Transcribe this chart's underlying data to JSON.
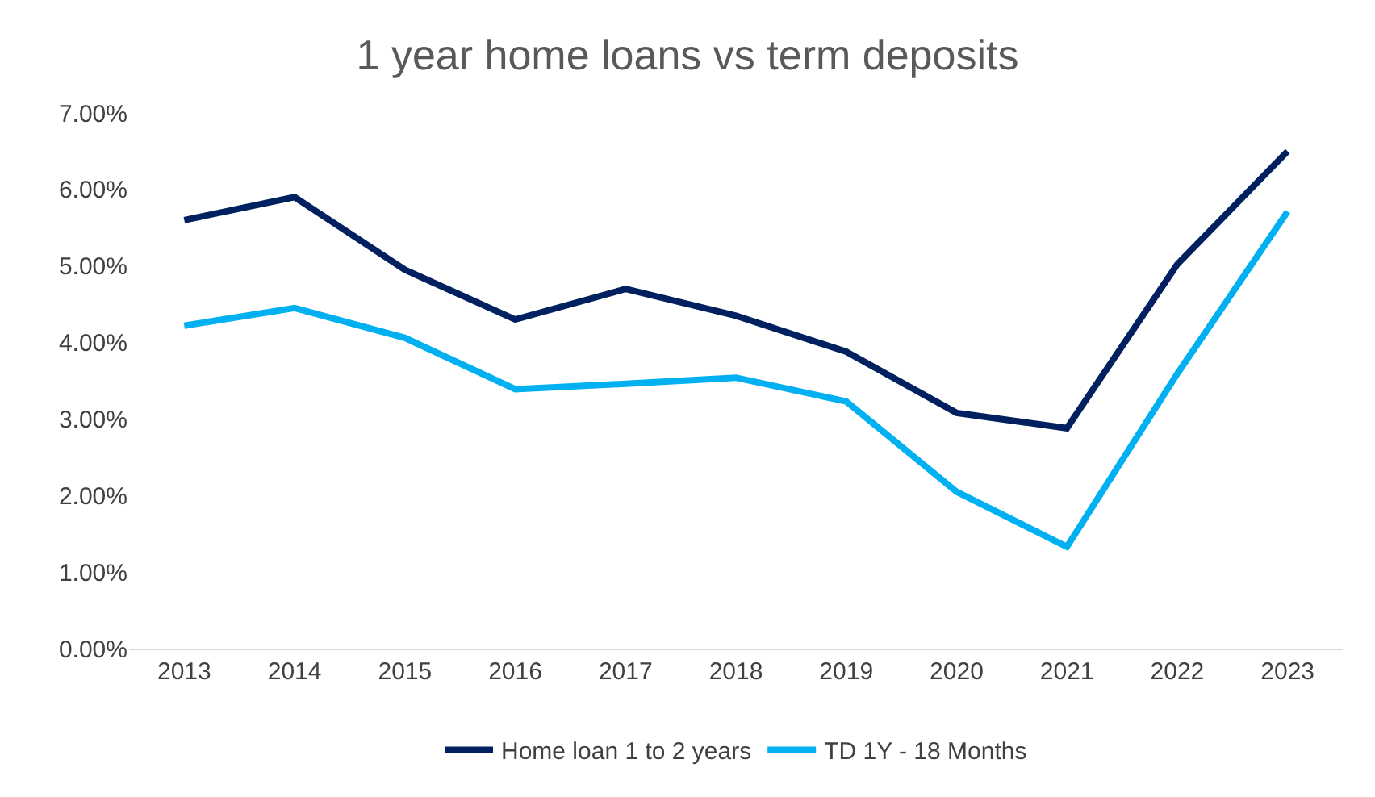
{
  "chart_data": {
    "type": "line",
    "title": "1 year home loans vs term deposits",
    "categories": [
      "2013",
      "2014",
      "2015",
      "2016",
      "2017",
      "2018",
      "2019",
      "2020",
      "2021",
      "2022",
      "2023"
    ],
    "series": [
      {
        "name": "Home loan 1 to 2 years",
        "color": "#002060",
        "values": [
          5.6,
          5.9,
          4.95,
          4.3,
          4.7,
          4.35,
          3.88,
          3.08,
          2.88,
          5.02,
          6.5
        ]
      },
      {
        "name": "TD 1Y - 18 Months",
        "color": "#00b0f0",
        "values": [
          4.22,
          4.45,
          4.06,
          3.39,
          3.46,
          3.54,
          3.23,
          2.05,
          1.33,
          3.59,
          5.71
        ]
      }
    ],
    "ylim": [
      0,
      7
    ],
    "yticks": [
      {
        "value": 0,
        "label": "0.00%"
      },
      {
        "value": 1,
        "label": "1.00%"
      },
      {
        "value": 2,
        "label": "2.00%"
      },
      {
        "value": 3,
        "label": "3.00%"
      },
      {
        "value": 4,
        "label": "4.00%"
      },
      {
        "value": 5,
        "label": "5.00%"
      },
      {
        "value": 6,
        "label": "6.00%"
      },
      {
        "value": 7,
        "label": "7.00%"
      }
    ],
    "grid": false,
    "legend": "bottom",
    "marker": "none",
    "line_style": "solid"
  }
}
